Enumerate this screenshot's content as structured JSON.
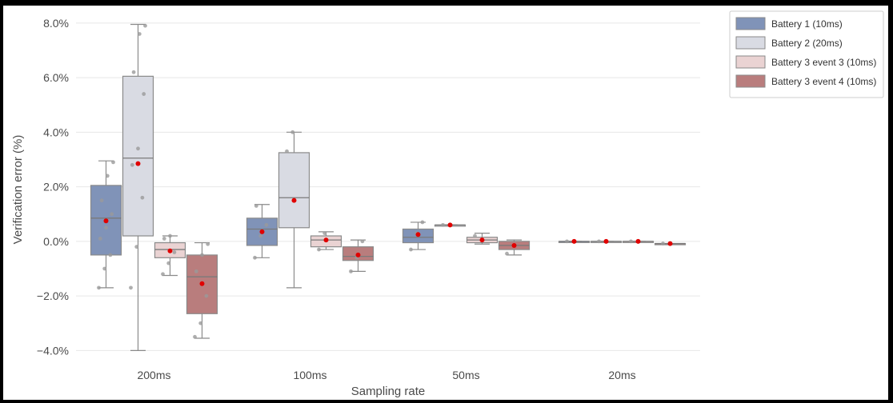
{
  "chart_data": {
    "type": "box",
    "xlabel": "Sampling rate",
    "ylabel": "Verification error (%)",
    "categories": [
      "200ms",
      "100ms",
      "50ms",
      "20ms"
    ],
    "ylim": [
      -4.4,
      8.2
    ],
    "yticks": [
      -4.0,
      -2.0,
      0.0,
      2.0,
      4.0,
      6.0,
      8.0
    ],
    "ytick_labels": [
      "−4.0%",
      "−2.0%",
      "0.0%",
      "2.0%",
      "4.0%",
      "6.0%",
      "8.0%"
    ],
    "grid": true,
    "legend_position": "top-right",
    "series": [
      {
        "name": "Battery 1 (10ms)",
        "color": "#8093b8",
        "boxes": [
          {
            "whislo": -1.7,
            "q1": -0.5,
            "med": 0.85,
            "q3": 2.05,
            "whishi": 2.95,
            "mean": 0.75,
            "points": [
              -1.7,
              -1.0,
              -0.5,
              0.1,
              0.5,
              1.0,
              1.5,
              2.4,
              2.9
            ]
          },
          {
            "whislo": -0.6,
            "q1": -0.15,
            "med": 0.45,
            "q3": 0.85,
            "whishi": 1.35,
            "mean": 0.35,
            "points": [
              -0.6,
              0.2,
              0.6,
              1.3
            ]
          },
          {
            "whislo": -0.3,
            "q1": -0.05,
            "med": 0.15,
            "q3": 0.45,
            "whishi": 0.7,
            "mean": 0.25,
            "points": [
              -0.3,
              0.3,
              0.7
            ]
          },
          {
            "whislo": 0.0,
            "q1": 0.0,
            "med": 0.0,
            "q3": 0.0,
            "whishi": 0.0,
            "mean": 0.0,
            "points": [
              0.0
            ]
          }
        ]
      },
      {
        "name": "Battery 2 (20ms)",
        "color": "#d9dbe3",
        "boxes": [
          {
            "whislo": -4.0,
            "q1": 0.2,
            "med": 3.05,
            "q3": 6.05,
            "whishi": 7.95,
            "mean": 2.85,
            "points": [
              -1.7,
              -0.2,
              1.6,
              2.8,
              3.4,
              5.4,
              6.2,
              7.6,
              7.9
            ]
          },
          {
            "whislo": -1.7,
            "q1": 0.5,
            "med": 1.6,
            "q3": 3.25,
            "whishi": 4.0,
            "mean": 1.5,
            "points": [
              3.3,
              4.0
            ]
          },
          {
            "whislo": 0.6,
            "q1": 0.6,
            "med": 0.6,
            "q3": 0.6,
            "whishi": 0.6,
            "mean": 0.6,
            "points": [
              0.6
            ]
          },
          {
            "whislo": 0.0,
            "q1": 0.0,
            "med": 0.0,
            "q3": 0.0,
            "whishi": 0.0,
            "mean": 0.0,
            "points": [
              0.0
            ]
          }
        ]
      },
      {
        "name": "Battery 3 event 3 (10ms)",
        "color": "#ead3d3",
        "boxes": [
          {
            "whislo": -1.25,
            "q1": -0.6,
            "med": -0.3,
            "q3": -0.05,
            "whishi": 0.2,
            "mean": -0.35,
            "points": [
              -1.2,
              -0.8,
              -0.4,
              0.1,
              0.2
            ]
          },
          {
            "whislo": -0.3,
            "q1": -0.2,
            "med": 0.05,
            "q3": 0.2,
            "whishi": 0.35,
            "mean": 0.05,
            "points": [
              -0.3,
              0.3
            ]
          },
          {
            "whislo": -0.1,
            "q1": -0.05,
            "med": 0.05,
            "q3": 0.15,
            "whishi": 0.3,
            "mean": 0.05,
            "points": [
              0.2
            ]
          },
          {
            "whislo": 0.0,
            "q1": 0.0,
            "med": 0.0,
            "q3": 0.0,
            "whishi": 0.0,
            "mean": 0.0,
            "points": [
              0.0
            ]
          }
        ]
      },
      {
        "name": "Battery 3 event 4 (10ms)",
        "color": "#b97d7d",
        "boxes": [
          {
            "whislo": -3.55,
            "q1": -2.65,
            "med": -1.3,
            "q3": -0.5,
            "whishi": -0.05,
            "mean": -1.55,
            "points": [
              -3.5,
              -3.0,
              -2.0,
              -1.1,
              -0.5,
              -0.1
            ]
          },
          {
            "whislo": -1.1,
            "q1": -0.7,
            "med": -0.55,
            "q3": -0.2,
            "whishi": 0.05,
            "mean": -0.5,
            "points": [
              -1.1,
              -0.6,
              0.0
            ]
          },
          {
            "whislo": -0.5,
            "q1": -0.3,
            "med": -0.15,
            "q3": 0.0,
            "whishi": 0.05,
            "mean": -0.15,
            "points": [
              -0.45
            ]
          },
          {
            "whislo": -0.08,
            "q1": -0.08,
            "med": -0.08,
            "q3": -0.08,
            "whishi": -0.08,
            "mean": -0.08,
            "points": [
              -0.08
            ]
          }
        ]
      }
    ]
  }
}
